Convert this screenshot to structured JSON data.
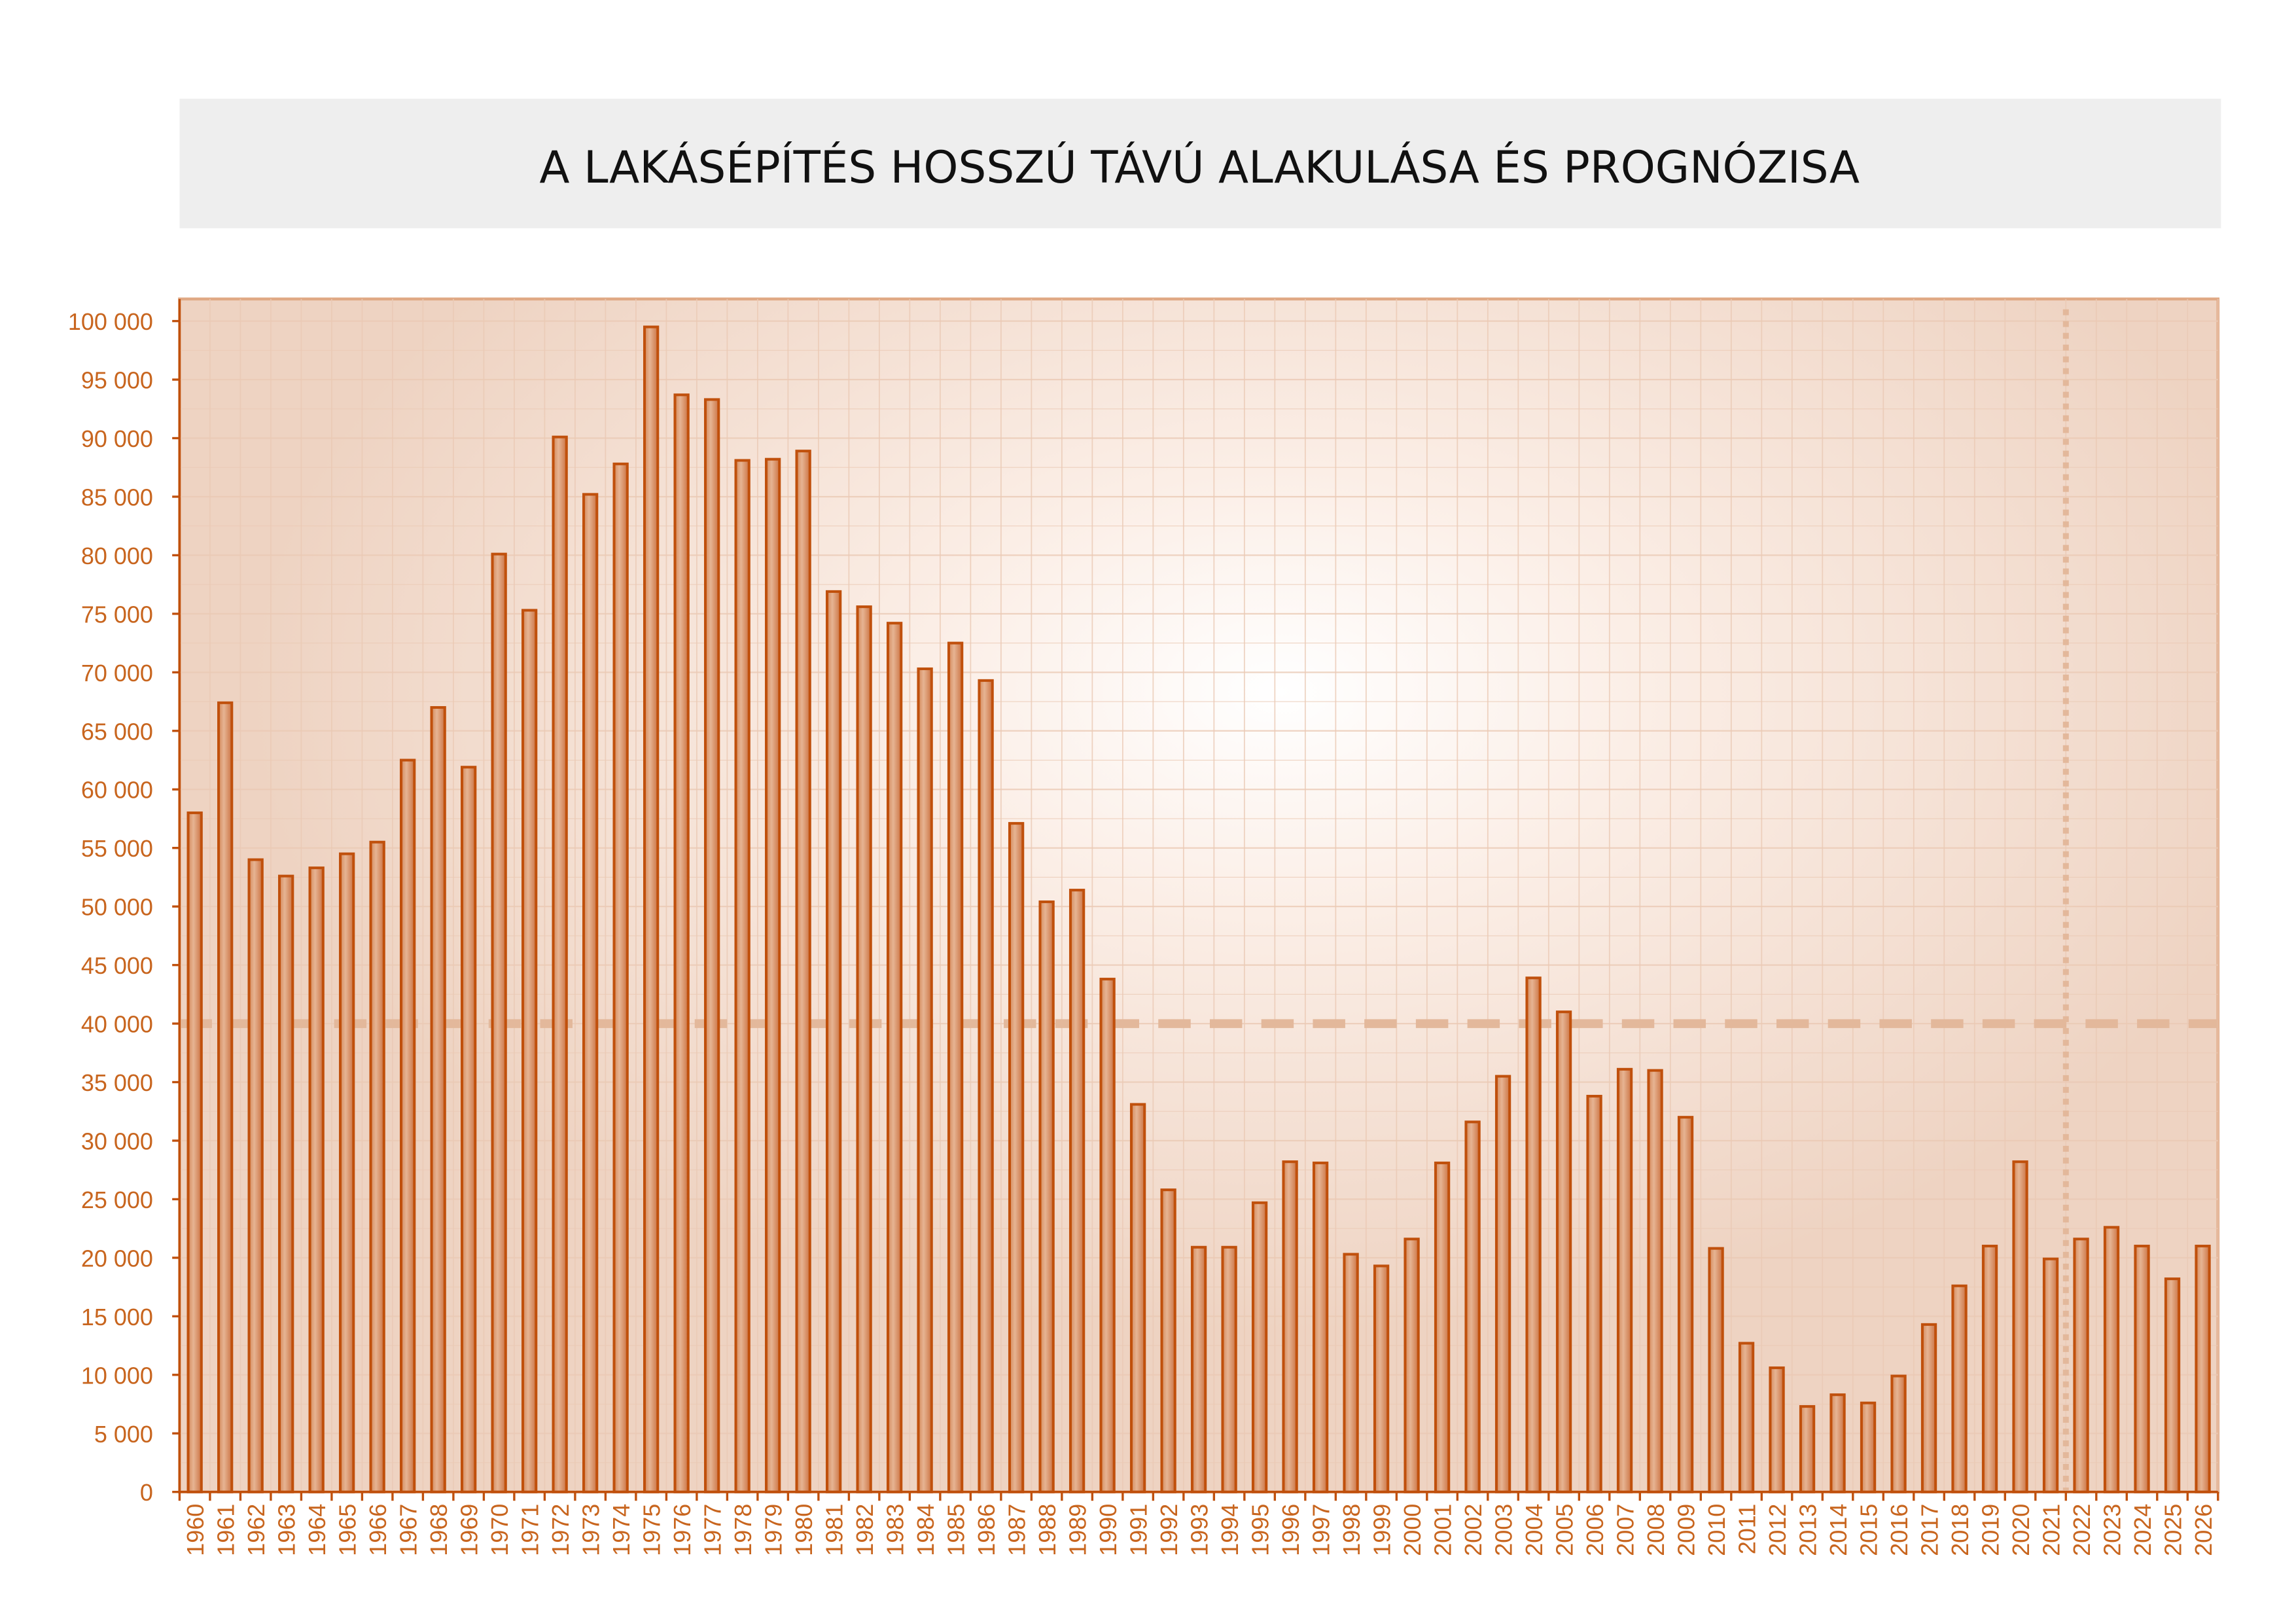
{
  "chart_data": {
    "type": "bar",
    "title": "A LAKÁSÉPÍTÉS HOSSZÚ TÁVÚ ALAKULÁSA ÉS PROGNÓZISA",
    "xlabel": "",
    "ylabel": "",
    "ylim": [
      0,
      100000
    ],
    "yticks": [
      0,
      5000,
      10000,
      15000,
      20000,
      25000,
      30000,
      35000,
      40000,
      45000,
      50000,
      55000,
      60000,
      65000,
      70000,
      75000,
      80000,
      85000,
      90000,
      95000,
      100000
    ],
    "ytick_labels": [
      "0",
      "5 000",
      "10 000",
      "15 000",
      "20 000",
      "25 000",
      "30 000",
      "35 000",
      "40 000",
      "45 000",
      "50 000",
      "55 000",
      "60 000",
      "65 000",
      "70 000",
      "75 000",
      "80 000",
      "85 000",
      "90 000",
      "95 000",
      "100 000"
    ],
    "grid": true,
    "categories": [
      "1960",
      "1961",
      "1962",
      "1963",
      "1964",
      "1965",
      "1966",
      "1967",
      "1968",
      "1969",
      "1970",
      "1971",
      "1972",
      "1973",
      "1974",
      "1975",
      "1976",
      "1977",
      "1978",
      "1979",
      "1980",
      "1981",
      "1982",
      "1983",
      "1984",
      "1985",
      "1986",
      "1987",
      "1988",
      "1989",
      "1990",
      "1991",
      "1992",
      "1993",
      "1994",
      "1995",
      "1996",
      "1997",
      "1998",
      "1999",
      "2000",
      "2001",
      "2002",
      "2003",
      "2004",
      "2005",
      "2006",
      "2007",
      "2008",
      "2009",
      "2010",
      "2011",
      "2012",
      "2013",
      "2014",
      "2015",
      "2016",
      "2017",
      "2018",
      "2019",
      "2020",
      "2021",
      "2022",
      "2023",
      "2024",
      "2025",
      "2026"
    ],
    "values": [
      58000,
      67400,
      54000,
      52600,
      53300,
      54500,
      55500,
      62500,
      67000,
      61900,
      80100,
      75300,
      90100,
      85200,
      87800,
      99500,
      93700,
      93300,
      88100,
      88200,
      88900,
      76900,
      75600,
      74200,
      70300,
      72500,
      69300,
      57100,
      50400,
      51400,
      43800,
      33100,
      25800,
      20900,
      20900,
      24700,
      28200,
      28100,
      20300,
      19300,
      21600,
      28100,
      31600,
      35500,
      43900,
      41000,
      33800,
      36100,
      36000,
      32000,
      20800,
      12700,
      10600,
      7300,
      8300,
      7600,
      9900,
      14300,
      17600,
      21000,
      28200,
      19900,
      21600,
      22600,
      21000,
      18200,
      21000
    ],
    "reference_line_value": 40000,
    "forecast_divider_after": "2021",
    "colors": {
      "bar_fill": "#e0a67f",
      "bar_stroke": "#c0500c",
      "axis": "#c0500c",
      "plot_bg_edge": "#eed3c2",
      "reference": "#e3b89b",
      "title_bg": "#eeeeee"
    }
  }
}
